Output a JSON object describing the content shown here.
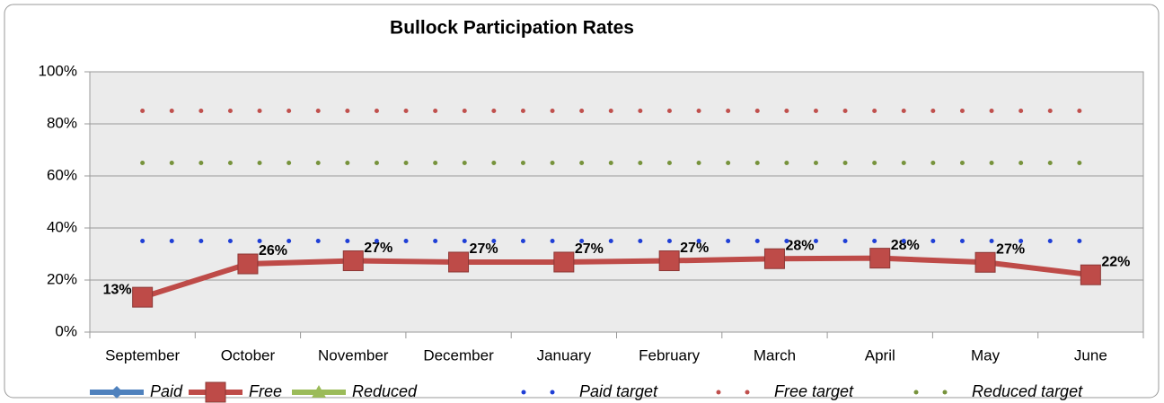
{
  "chart_data": {
    "type": "line",
    "title": "Bullock  Participation Rates",
    "categories": [
      "September",
      "October",
      "November",
      "December",
      "January",
      "February",
      "March",
      "April",
      "May",
      "June"
    ],
    "series": [
      {
        "name": "Paid",
        "color": "#4f81bd",
        "line_style": "solid",
        "marker": "diamond",
        "values": [
          null,
          null,
          null,
          null,
          null,
          null,
          null,
          null,
          null,
          null
        ]
      },
      {
        "name": "Free",
        "color": "#be4b48",
        "line_style": "solid",
        "marker": "square",
        "values": [
          13.4,
          26.2,
          27.4,
          26.9,
          26.9,
          27.4,
          28.2,
          28.4,
          26.8,
          22.0
        ],
        "value_labels": [
          "13%",
          "26%",
          "27%",
          "27%",
          "27%",
          "27%",
          "28%",
          "28%",
          "27%",
          "22%"
        ]
      },
      {
        "name": "Reduced",
        "color": "#9bbb59",
        "line_style": "solid",
        "marker": "triangle",
        "values": [
          null,
          null,
          null,
          null,
          null,
          null,
          null,
          null,
          null,
          null
        ]
      },
      {
        "name": "Paid target",
        "color": "#1f3fd6",
        "line_style": "dotted",
        "marker": "none",
        "values": [
          35,
          35,
          35,
          35,
          35,
          35,
          35,
          35,
          35,
          35
        ]
      },
      {
        "name": "Free target",
        "color": "#c0504d",
        "line_style": "dotted",
        "marker": "none",
        "values": [
          85,
          85,
          85,
          85,
          85,
          85,
          85,
          85,
          85,
          85
        ]
      },
      {
        "name": "Reduced target",
        "color": "#77933c",
        "line_style": "dotted",
        "marker": "none",
        "values": [
          65,
          65,
          65,
          65,
          65,
          65,
          65,
          65,
          65,
          65
        ]
      }
    ],
    "ylim": [
      0,
      100
    ],
    "yticks": [
      {
        "value": 0,
        "label": "0%"
      },
      {
        "value": 20,
        "label": "20%"
      },
      {
        "value": 40,
        "label": "40%"
      },
      {
        "value": 60,
        "label": "60%"
      },
      {
        "value": 80,
        "label": "80%"
      },
      {
        "value": 100,
        "label": "100%"
      }
    ],
    "grid": true,
    "legend": "bottom"
  }
}
